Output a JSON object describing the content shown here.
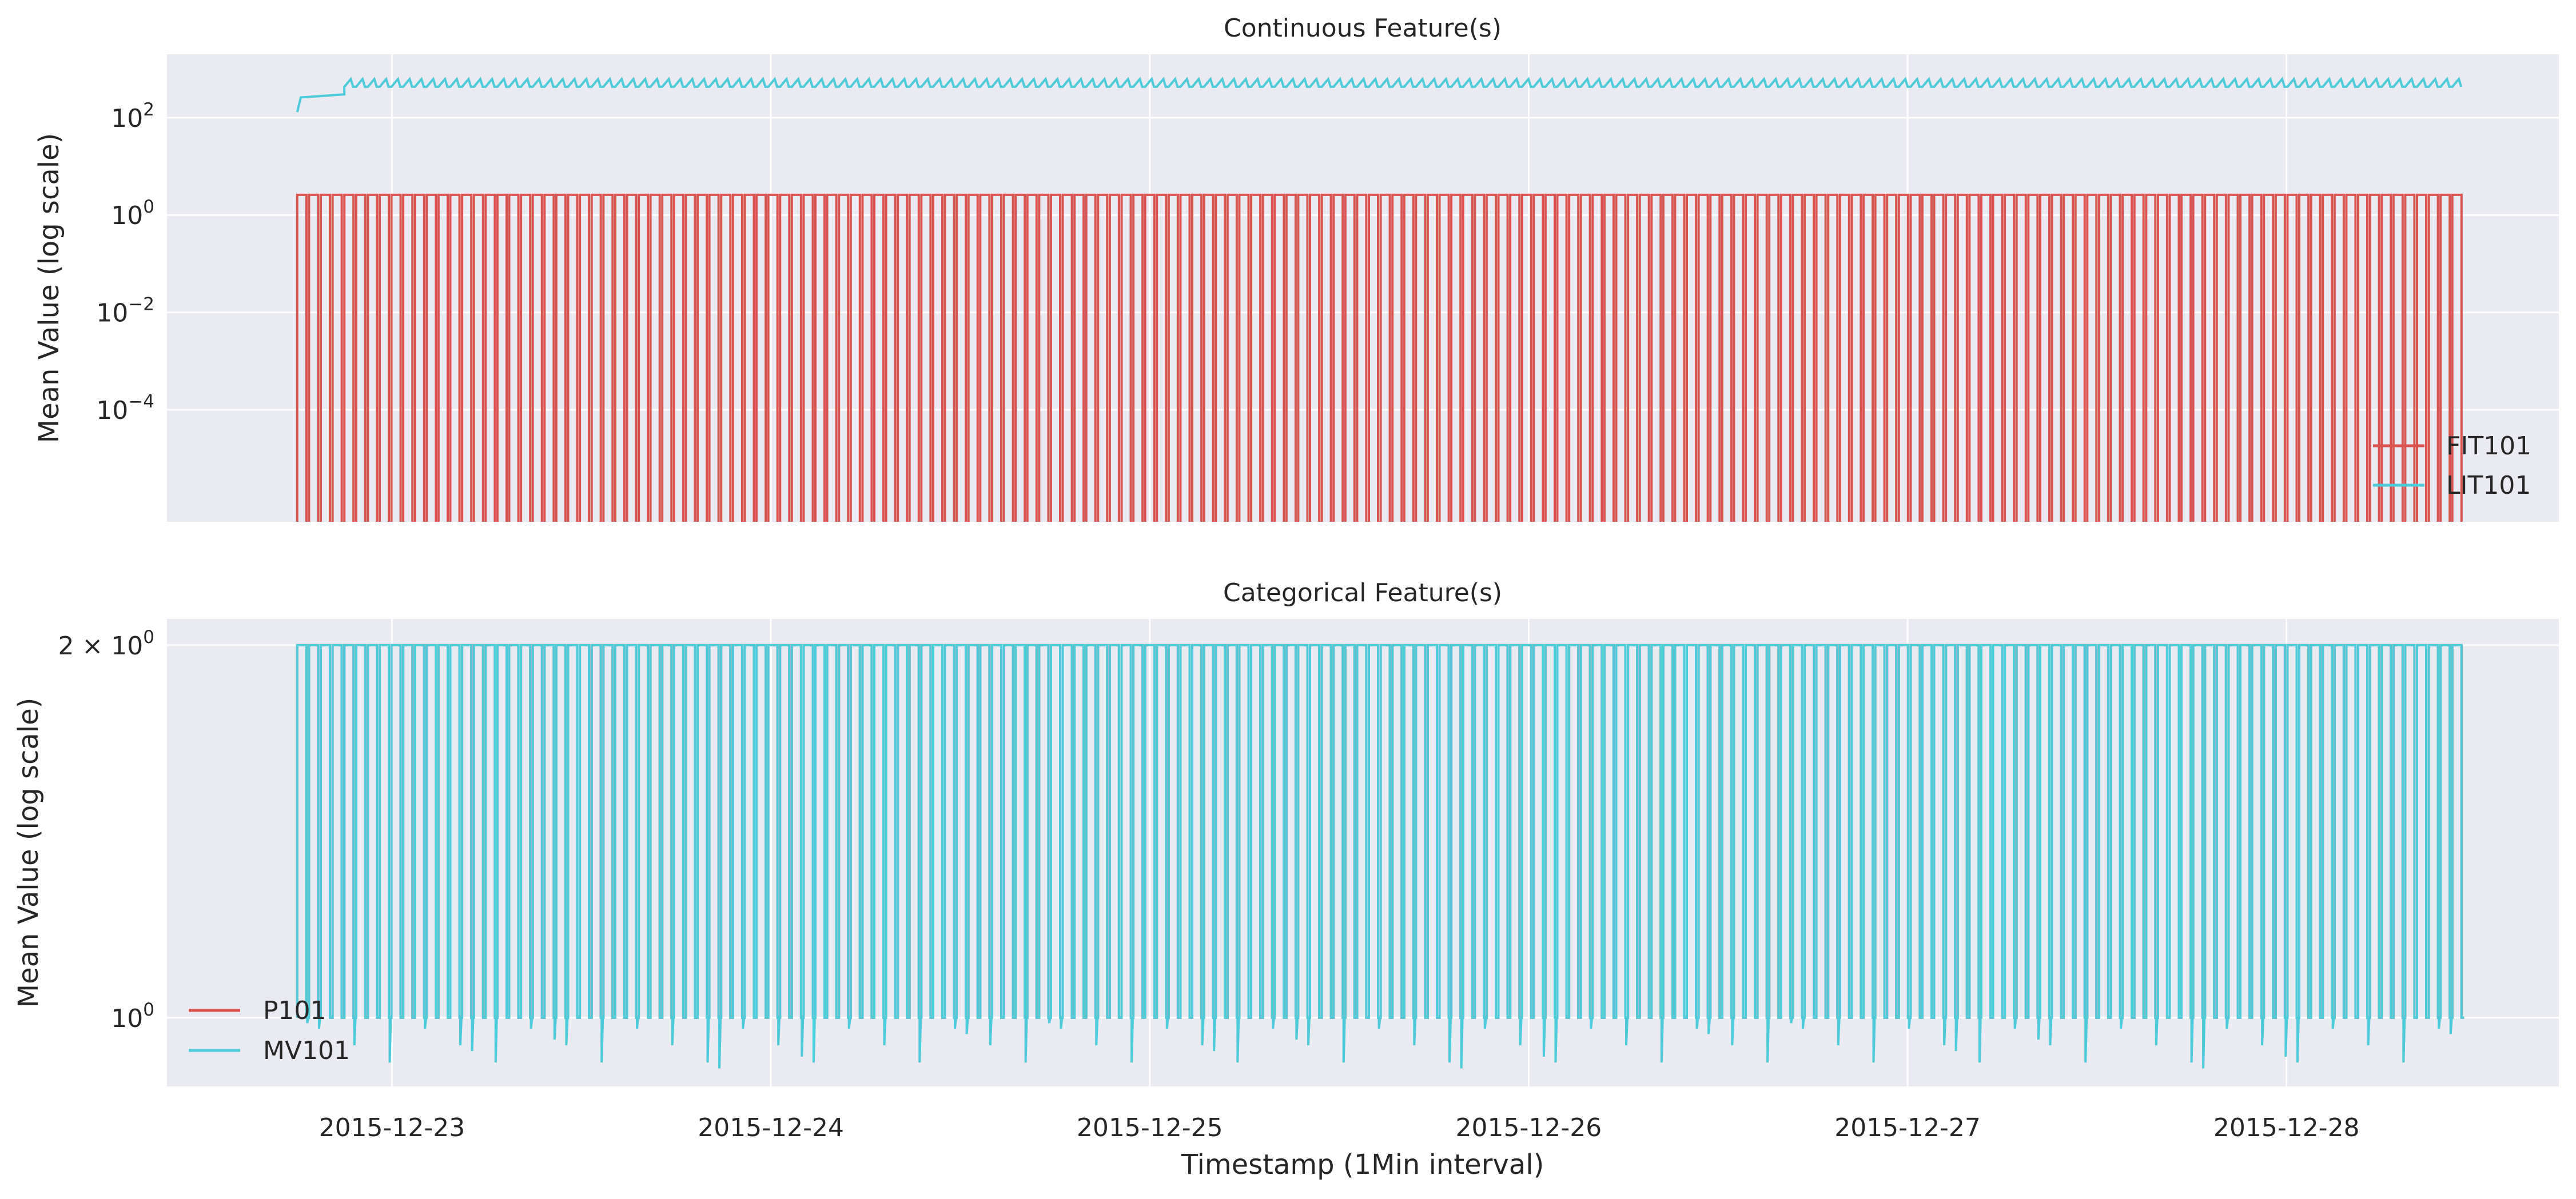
{
  "chart_data": [
    {
      "type": "line",
      "title": "Continuous Feature(s)",
      "ylabel": "Mean Value (log scale)",
      "xlabel": "",
      "yscale": "log",
      "ylim": [
        5e-07,
        2000
      ],
      "xlim": [
        "2015-12-22 09:45",
        "2015-12-28 17:15"
      ],
      "grid": true,
      "legend_position": "lower right",
      "y_ticks": [
        {
          "value": 100,
          "base": "10",
          "exp": "2"
        },
        {
          "value": 1,
          "base": "10",
          "exp": "0"
        },
        {
          "value": 0.01,
          "base": "10",
          "exp": "−2"
        },
        {
          "value": 0.0001,
          "base": "10",
          "exp": "−4"
        }
      ],
      "series": [
        {
          "name": "FIT101",
          "color": "#d9534f",
          "pattern": "on-off",
          "on_value": 2.6,
          "off_value": 0,
          "start": "2015-12-22 18:00",
          "end": "2015-12-28 11:15",
          "cycles": 184
        },
        {
          "name": "LIT101",
          "color": "#4ecbd9",
          "pattern": "sawtooth",
          "min_value": 430,
          "max_value": 620,
          "initial_value": 130,
          "start": "2015-12-22 18:00",
          "end": "2015-12-28 11:15",
          "cycles": 184
        }
      ]
    },
    {
      "type": "line",
      "title": "Categorical Feature(s)",
      "ylabel": "Mean Value (log scale)",
      "xlabel": "Timestamp (1Min interval)",
      "yscale": "log",
      "ylim": [
        0.88,
        2.1
      ],
      "xlim": [
        "2015-12-22 09:45",
        "2015-12-28 17:15"
      ],
      "grid": true,
      "legend_position": "lower left",
      "y_ticks": [
        {
          "value": 2,
          "prefix": "2 × ",
          "base": "10",
          "exp": "0"
        },
        {
          "value": 1,
          "prefix": "",
          "base": "10",
          "exp": "0"
        }
      ],
      "series": [
        {
          "name": "P101",
          "color": "#d9534f",
          "pattern": "on-off",
          "on_value": 2,
          "off_value": 1,
          "start": "2015-12-22 18:00",
          "end": "2015-12-28 11:15",
          "cycles": 184
        },
        {
          "name": "MV101",
          "color": "#4ecbd9",
          "pattern": "on-off with dips",
          "on_value": 2,
          "off_value": 1,
          "min_dip": 0.91,
          "start": "2015-12-22 18:00",
          "end": "2015-12-28 11:15",
          "cycles": 184
        }
      ],
      "x_ticks": [
        "2015-12-23",
        "2015-12-24",
        "2015-12-25",
        "2015-12-26",
        "2015-12-27",
        "2015-12-28"
      ]
    }
  ]
}
